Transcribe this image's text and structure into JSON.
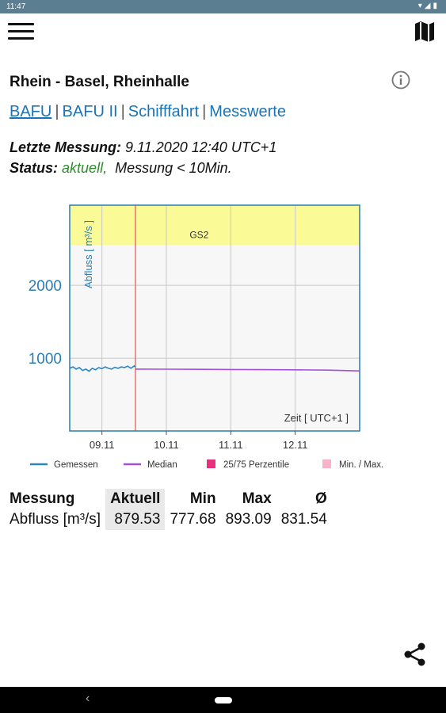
{
  "statusbar": {
    "time": "11:47",
    "icons": "▾◢▮"
  },
  "header": {
    "title": "Rhein - Basel, Rheinhalle"
  },
  "links": [
    {
      "label": "BAFU",
      "active": true
    },
    {
      "label": "BAFU II",
      "active": false
    },
    {
      "label": "Schifffahrt",
      "active": false
    },
    {
      "label": "Messwerte",
      "active": false
    }
  ],
  "links_separator": "|",
  "measurement": {
    "label": "Letzte Messung:",
    "value": "9.11.2020 12:40 UTC+1"
  },
  "status": {
    "label": "Status:",
    "value": "aktuell,",
    "detail": "Messung < 10Min."
  },
  "chart_data": {
    "type": "line",
    "ylabel": "Abfluss  [ m³/s ]",
    "xlabel": "Zeit  [ UTC+1 ]",
    "ylim": [
      0,
      3100
    ],
    "yticks": [
      1000,
      2000
    ],
    "xlim": [
      8.5,
      13.0
    ],
    "xticks": [
      9,
      10,
      11,
      12
    ],
    "xtick_labels": [
      "09.11",
      "10.11",
      "11.11",
      "12.11"
    ],
    "band": {
      "label": "GS2",
      "from": 2550,
      "to": 3100,
      "color": "#fafa96"
    },
    "now_line": 9.52,
    "series": [
      {
        "name": "Gemessen",
        "color": "#2e86c1",
        "x": [
          8.5,
          8.55,
          8.6,
          8.65,
          8.7,
          8.75,
          8.8,
          8.85,
          8.9,
          8.95,
          9.0,
          9.05,
          9.1,
          9.15,
          9.2,
          9.25,
          9.3,
          9.35,
          9.4,
          9.45,
          9.5,
          9.52
        ],
        "y": [
          860,
          880,
          850,
          870,
          830,
          850,
          820,
          860,
          840,
          870,
          855,
          880,
          860,
          850,
          875,
          860,
          880,
          870,
          890,
          860,
          893,
          880
        ]
      },
      {
        "name": "Median",
        "color": "#a64fd8",
        "x": [
          9.52,
          10.0,
          10.5,
          11.0,
          11.5,
          12.0,
          12.5,
          13.0
        ],
        "y": [
          850,
          848,
          846,
          844,
          842,
          840,
          835,
          825
        ]
      }
    ],
    "legend": [
      {
        "name": "Gemessen",
        "kind": "line",
        "color": "#2e86c1"
      },
      {
        "name": "Median",
        "kind": "line",
        "color": "#a64fd8"
      },
      {
        "name": "25/75 Perzentile",
        "kind": "box",
        "color": "#e8307f"
      },
      {
        "name": "Min. / Max.",
        "kind": "box",
        "color": "#f6b4c6"
      }
    ]
  },
  "table": {
    "headers": [
      "Messung",
      "Aktuell",
      "Min",
      "Max",
      "Ø"
    ],
    "rows": [
      [
        "Abfluss  [m³/s]",
        "879.53",
        "777.68",
        "893.09",
        "831.54"
      ]
    ]
  },
  "colors": {
    "link": "#1b74b8",
    "status_ok": "#2e8b2e",
    "axis": "#2a7db4"
  }
}
